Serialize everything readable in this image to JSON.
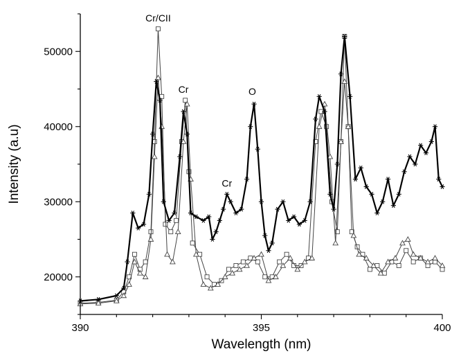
{
  "chart_data": {
    "type": "line",
    "xlabel": "Wavelength (nm)",
    "ylabel": "Intensity (a.u)",
    "xlim": [
      390,
      400
    ],
    "ylim": [
      15000,
      55000
    ],
    "x_ticks": [
      390,
      395,
      400
    ],
    "y_ticks": [
      20000,
      30000,
      40000,
      50000
    ],
    "x_tick_labels": [
      "390",
      "395",
      "400"
    ],
    "y_tick_labels": [
      "20000",
      "30000",
      "40000",
      "50000"
    ],
    "grid": false,
    "annotations": [
      {
        "text": "Cr/CII",
        "x": 392.15,
        "y": 54000
      },
      {
        "text": "Cr",
        "x": 392.85,
        "y": 44500
      },
      {
        "text": "Cr",
        "x": 394.05,
        "y": 32000
      },
      {
        "text": "O",
        "x": 394.75,
        "y": 44200
      }
    ],
    "series": [
      {
        "marker": "star",
        "color": "#000000",
        "line_width": 2.2,
        "x": [
          390.0,
          390.5,
          391.0,
          391.2,
          391.3,
          391.45,
          391.6,
          391.75,
          391.9,
          392.0,
          392.1,
          392.2,
          392.3,
          392.45,
          392.6,
          392.75,
          392.85,
          392.95,
          393.05,
          393.2,
          393.4,
          393.55,
          393.65,
          393.75,
          393.85,
          393.95,
          394.05,
          394.15,
          394.3,
          394.45,
          394.6,
          394.7,
          394.8,
          394.9,
          395.0,
          395.1,
          395.2,
          395.3,
          395.45,
          395.6,
          395.75,
          395.9,
          396.05,
          396.2,
          396.35,
          396.5,
          396.6,
          396.75,
          396.9,
          397.0,
          397.1,
          397.2,
          397.3,
          397.45,
          397.6,
          397.75,
          397.9,
          398.05,
          398.2,
          398.35,
          398.5,
          398.65,
          398.8,
          398.95,
          399.1,
          399.25,
          399.4,
          399.55,
          399.7,
          399.8,
          399.9,
          400.0
        ],
        "y": [
          16800,
          17000,
          17500,
          18500,
          22000,
          28500,
          26500,
          27000,
          31000,
          39000,
          46000,
          43500,
          30000,
          27500,
          28500,
          36000,
          42000,
          39000,
          28500,
          28000,
          27500,
          28000,
          25000,
          26000,
          27500,
          29000,
          31000,
          30000,
          28500,
          29000,
          33000,
          40000,
          43000,
          37000,
          30000,
          25500,
          23500,
          24500,
          29000,
          30000,
          27500,
          28000,
          27000,
          27500,
          30000,
          41000,
          44000,
          42000,
          31000,
          29000,
          35000,
          47000,
          52000,
          44000,
          33000,
          34500,
          32000,
          31000,
          28500,
          30000,
          33000,
          29500,
          31000,
          34000,
          36000,
          35000,
          37500,
          36500,
          38000,
          40000,
          33000,
          32000
        ]
      },
      {
        "marker": "square",
        "color": "#444444",
        "line_width": 1.0,
        "x": [
          390.0,
          390.5,
          391.0,
          391.2,
          391.35,
          391.5,
          391.65,
          391.8,
          391.95,
          392.05,
          392.15,
          392.25,
          392.35,
          392.5,
          392.65,
          392.8,
          392.9,
          393.0,
          393.1,
          393.3,
          393.5,
          393.7,
          393.9,
          394.1,
          394.3,
          394.5,
          394.7,
          394.9,
          395.1,
          395.3,
          395.5,
          395.7,
          395.9,
          396.1,
          396.3,
          396.5,
          396.65,
          396.8,
          396.95,
          397.1,
          397.2,
          397.3,
          397.4,
          397.5,
          397.65,
          397.8,
          398.0,
          398.2,
          398.4,
          398.6,
          398.8,
          399.0,
          399.2,
          399.4,
          399.6,
          399.8,
          400.0
        ],
        "y": [
          16500,
          16600,
          16900,
          18000,
          20000,
          23000,
          21000,
          22000,
          26000,
          38000,
          53000,
          44000,
          27000,
          26000,
          27500,
          38000,
          43500,
          34000,
          24500,
          23000,
          20000,
          19000,
          19500,
          21000,
          21500,
          22000,
          22500,
          22000,
          20000,
          20000,
          22000,
          23000,
          21500,
          21500,
          22500,
          38000,
          42000,
          40000,
          30000,
          26000,
          38000,
          52000,
          40000,
          26000,
          24000,
          23000,
          21000,
          21500,
          20500,
          22000,
          21500,
          23500,
          22000,
          22500,
          21500,
          22000,
          21000
        ]
      },
      {
        "marker": "triangle",
        "color": "#444444",
        "line_width": 1.0,
        "x": [
          390.0,
          390.5,
          391.0,
          391.2,
          391.35,
          391.5,
          391.65,
          391.8,
          391.95,
          392.05,
          392.15,
          392.25,
          392.4,
          392.55,
          392.7,
          392.85,
          392.95,
          393.05,
          393.2,
          393.4,
          393.6,
          393.8,
          394.0,
          394.2,
          394.4,
          394.6,
          394.8,
          395.0,
          395.2,
          395.4,
          395.6,
          395.8,
          396.0,
          396.2,
          396.4,
          396.6,
          396.75,
          396.9,
          397.05,
          397.2,
          397.3,
          397.4,
          397.55,
          397.7,
          397.9,
          398.1,
          398.3,
          398.5,
          398.7,
          398.9,
          399.05,
          399.2,
          399.4,
          399.6,
          399.8,
          400.0
        ],
        "y": [
          16400,
          16500,
          16800,
          17500,
          19000,
          22000,
          20500,
          20000,
          25000,
          36000,
          46500,
          40000,
          23000,
          22000,
          26000,
          38000,
          43000,
          33000,
          23000,
          19000,
          18500,
          19000,
          20000,
          20500,
          21000,
          21500,
          22500,
          23000,
          19500,
          20000,
          21500,
          22500,
          21000,
          22000,
          22500,
          40000,
          43000,
          36000,
          24500,
          38000,
          46000,
          40000,
          25500,
          23000,
          22500,
          21500,
          20500,
          22000,
          22500,
          24500,
          25000,
          23000,
          22500,
          22000,
          22500,
          21500
        ]
      }
    ]
  }
}
